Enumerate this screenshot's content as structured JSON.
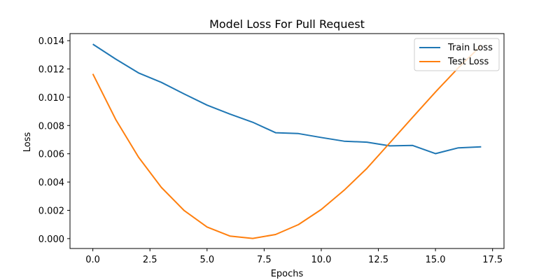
{
  "chart_data": {
    "type": "line",
    "title": "Model Loss For Pull Request",
    "xlabel": "Epochs",
    "ylabel": "Loss",
    "xlim": [
      -1.0,
      18.0
    ],
    "ylim": [
      -0.0007,
      0.0145
    ],
    "xticks": [
      0.0,
      2.5,
      5.0,
      7.5,
      10.0,
      12.5,
      15.0,
      17.5
    ],
    "xtick_labels": [
      "0.0",
      "2.5",
      "5.0",
      "7.5",
      "10.0",
      "12.5",
      "15.0",
      "17.5"
    ],
    "yticks": [
      0.0,
      0.002,
      0.004,
      0.006,
      0.008,
      0.01,
      0.012,
      0.014
    ],
    "ytick_labels": [
      "0.000",
      "0.002",
      "0.004",
      "0.006",
      "0.008",
      "0.010",
      "0.012",
      "0.014"
    ],
    "grid": false,
    "legend_position": "top-right",
    "x": [
      0,
      1,
      2,
      3,
      4,
      5,
      6,
      7,
      8,
      9,
      10,
      11,
      12,
      13,
      14,
      15,
      16,
      17
    ],
    "series": [
      {
        "name": "Train Loss",
        "color": "#1f77b4",
        "values": [
          0.01375,
          0.0127,
          0.01172,
          0.01105,
          0.01023,
          0.00944,
          0.00881,
          0.00823,
          0.00749,
          0.00743,
          0.00715,
          0.00689,
          0.00682,
          0.00656,
          0.00659,
          0.00601,
          0.00642,
          0.00649
        ]
      },
      {
        "name": "Test Loss",
        "color": "#ff7f0e",
        "values": [
          0.01165,
          0.00843,
          0.00576,
          0.00362,
          0.00198,
          0.00082,
          0.00018,
          1e-05,
          0.00029,
          0.00099,
          0.00206,
          0.00342,
          0.00497,
          0.00677,
          0.00858,
          0.01037,
          0.01208,
          0.01365
        ]
      }
    ]
  }
}
